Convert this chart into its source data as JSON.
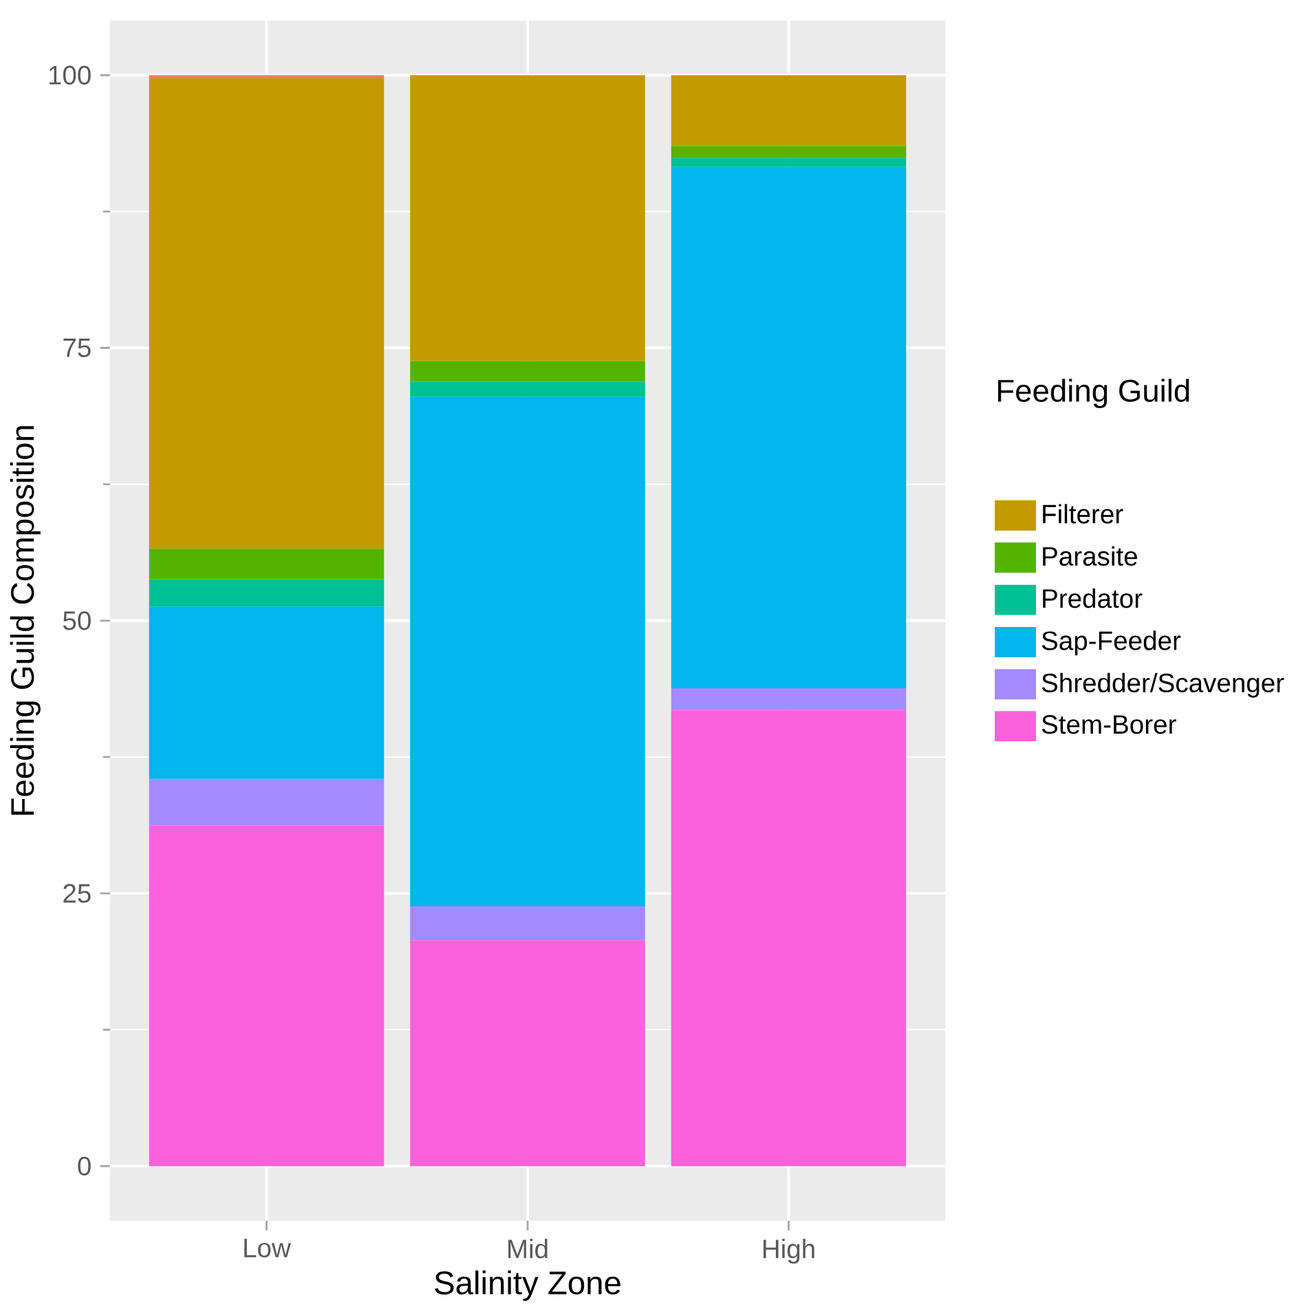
{
  "chart_data": {
    "type": "bar",
    "stacked": true,
    "xlabel": "Salinity Zone",
    "ylabel": "Feeding Guild Composition",
    "legend_title": "Feeding  Guild",
    "legend": "right",
    "categories": [
      "Low",
      "Mid",
      "High"
    ],
    "series": [
      {
        "name": "Stem-Borer",
        "color": "#fa62db",
        "values": [
          31.2,
          20.7,
          41.8
        ]
      },
      {
        "name": "Shredder/Scavenger",
        "color": "#a58aff",
        "values": [
          4.3,
          3.1,
          2.0
        ]
      },
      {
        "name": "Sap-Feeder",
        "color": "#00b6eb",
        "values": [
          15.8,
          46.7,
          47.8
        ]
      },
      {
        "name": "Predator",
        "color": "#00c094",
        "values": [
          2.5,
          1.4,
          0.8
        ]
      },
      {
        "name": "Parasite",
        "color": "#53b400",
        "values": [
          2.8,
          1.9,
          1.1
        ]
      },
      {
        "name": "Filterer",
        "color": "#c49a00",
        "values": [
          43.1,
          26.2,
          6.5
        ]
      },
      {
        "color": "#f8766d",
        "values": [
          0.3,
          0,
          0
        ]
      }
    ],
    "ylim": [
      -5,
      105
    ],
    "yticks": [
      0,
      25,
      50,
      75,
      100
    ],
    "grid": true
  }
}
